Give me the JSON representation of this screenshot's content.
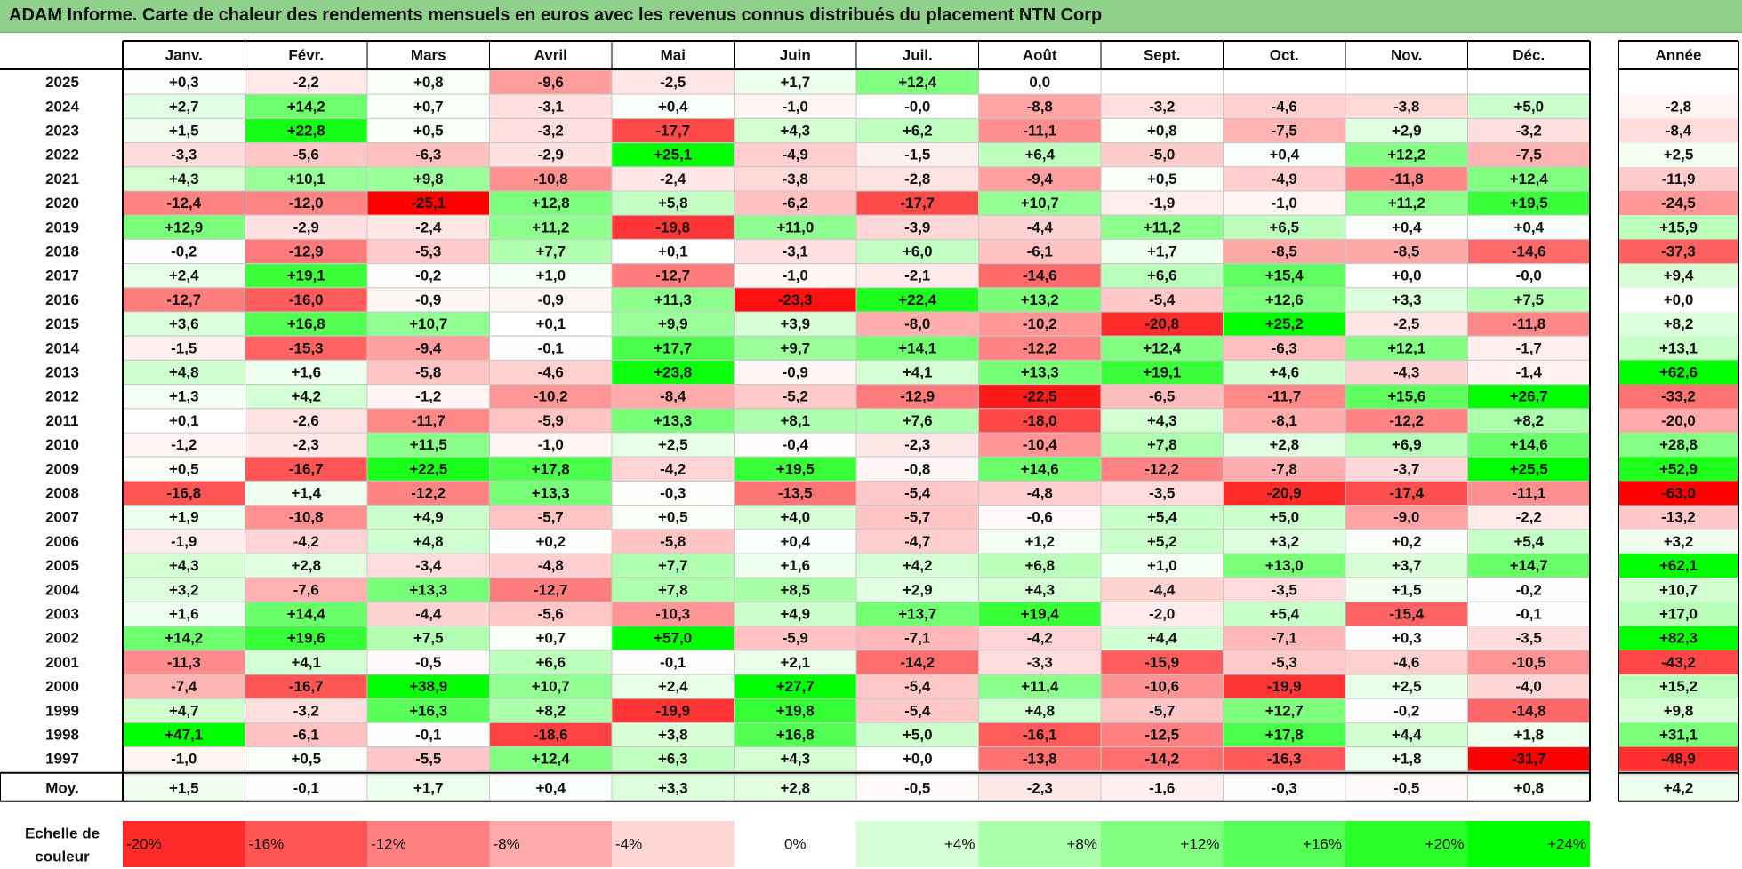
{
  "title": "ADAM Informe. Carte de chaleur des rendements mensuels en euros avec les revenus connus distribués du placement NTN Corp",
  "chart_data": {
    "type": "heatmap",
    "title": "ADAM Informe. Carte de chaleur des rendements mensuels en euros avec les revenus connus distribués du placement NTN Corp",
    "columns": [
      "Janv.",
      "Févr.",
      "Mars",
      "Avril",
      "Mai",
      "Juin",
      "Juil.",
      "Août",
      "Sept.",
      "Oct.",
      "Nov.",
      "Déc."
    ],
    "year_column_label": "Année",
    "rows": [
      {
        "label": "2025",
        "values": [
          "+0,3",
          "-2,2",
          "+0,8",
          "-9,6",
          "-2,5",
          "+1,7",
          "+12,4",
          "0,0",
          "",
          "",
          "",
          ""
        ],
        "year": ""
      },
      {
        "label": "2024",
        "values": [
          "+2,7",
          "+14,2",
          "+0,7",
          "-3,1",
          "+0,4",
          "-1,0",
          "-0,0",
          "-8,8",
          "-3,2",
          "-4,6",
          "-3,8",
          "+5,0"
        ],
        "year": "-2,8"
      },
      {
        "label": "2023",
        "values": [
          "+1,5",
          "+22,8",
          "+0,5",
          "-3,2",
          "-17,7",
          "+4,3",
          "+6,2",
          "-11,1",
          "+0,8",
          "-7,5",
          "+2,9",
          "-3,2"
        ],
        "year": "-8,4"
      },
      {
        "label": "2022",
        "values": [
          "-3,3",
          "-5,6",
          "-6,3",
          "-2,9",
          "+25,1",
          "-4,9",
          "-1,5",
          "+6,4",
          "-5,0",
          "+0,4",
          "+12,2",
          "-7,5"
        ],
        "year": "+2,5"
      },
      {
        "label": "2021",
        "values": [
          "+4,3",
          "+10,1",
          "+9,8",
          "-10,8",
          "-2,4",
          "-3,8",
          "-2,8",
          "-9,4",
          "+0,5",
          "-4,9",
          "-11,8",
          "+12,4"
        ],
        "year": "-11,9"
      },
      {
        "label": "2020",
        "values": [
          "-12,4",
          "-12,0",
          "-25,1",
          "+12,8",
          "+5,8",
          "-6,2",
          "-17,7",
          "+10,7",
          "-1,9",
          "-1,0",
          "+11,2",
          "+19,5"
        ],
        "year": "-24,5"
      },
      {
        "label": "2019",
        "values": [
          "+12,9",
          "-2,9",
          "-2,4",
          "+11,2",
          "-19,8",
          "+11,0",
          "-3,9",
          "-4,4",
          "+11,2",
          "+6,5",
          "+0,4",
          "+0,4"
        ],
        "year": "+15,9"
      },
      {
        "label": "2018",
        "values": [
          "-0,2",
          "-12,9",
          "-5,3",
          "+7,7",
          "+0,1",
          "-3,1",
          "+6,0",
          "-6,1",
          "+1,7",
          "-8,5",
          "-8,5",
          "-14,6"
        ],
        "year": "-37,3"
      },
      {
        "label": "2017",
        "values": [
          "+2,4",
          "+19,1",
          "-0,2",
          "+1,0",
          "-12,7",
          "-1,0",
          "-2,1",
          "-14,6",
          "+6,6",
          "+15,4",
          "+0,0",
          "-0,0"
        ],
        "year": "+9,4"
      },
      {
        "label": "2016",
        "values": [
          "-12,7",
          "-16,0",
          "-0,9",
          "-0,9",
          "+11,3",
          "-23,3",
          "+22,4",
          "+13,2",
          "-5,4",
          "+12,6",
          "+3,3",
          "+7,5"
        ],
        "year": "+0,0"
      },
      {
        "label": "2015",
        "values": [
          "+3,6",
          "+16,8",
          "+10,7",
          "+0,1",
          "+9,9",
          "+3,9",
          "-8,0",
          "-10,2",
          "-20,8",
          "+25,2",
          "-2,5",
          "-11,8"
        ],
        "year": "+8,2"
      },
      {
        "label": "2014",
        "values": [
          "-1,5",
          "-15,3",
          "-9,4",
          "-0,1",
          "+17,7",
          "+9,7",
          "+14,1",
          "-12,2",
          "+12,4",
          "-6,3",
          "+12,1",
          "-1,7"
        ],
        "year": "+13,1"
      },
      {
        "label": "2013",
        "values": [
          "+4,8",
          "+1,6",
          "-5,8",
          "-4,6",
          "+23,8",
          "-0,9",
          "+4,1",
          "+13,3",
          "+19,1",
          "+4,6",
          "-4,3",
          "-1,4"
        ],
        "year": "+62,6"
      },
      {
        "label": "2012",
        "values": [
          "+1,3",
          "+4,2",
          "-1,2",
          "-10,2",
          "-8,4",
          "-5,2",
          "-12,9",
          "-22,5",
          "-6,5",
          "-11,7",
          "+15,6",
          "+26,7"
        ],
        "year": "-33,2"
      },
      {
        "label": "2011",
        "values": [
          "+0,1",
          "-2,6",
          "-11,7",
          "-5,9",
          "+13,3",
          "+8,1",
          "+7,6",
          "-18,0",
          "+4,3",
          "-8,1",
          "-12,2",
          "+8,2"
        ],
        "year": "-20,0"
      },
      {
        "label": "2010",
        "values": [
          "-1,2",
          "-2,3",
          "+11,5",
          "-1,0",
          "+2,5",
          "-0,4",
          "-2,3",
          "-10,4",
          "+7,8",
          "+2,8",
          "+6,9",
          "+14,6"
        ],
        "year": "+28,8"
      },
      {
        "label": "2009",
        "values": [
          "+0,5",
          "-16,7",
          "+22,5",
          "+17,8",
          "-4,2",
          "+19,5",
          "-0,8",
          "+14,6",
          "-12,2",
          "-7,8",
          "-3,7",
          "+25,5"
        ],
        "year": "+52,9"
      },
      {
        "label": "2008",
        "values": [
          "-16,8",
          "+1,4",
          "-12,2",
          "+13,3",
          "-0,3",
          "-13,5",
          "-5,4",
          "-4,8",
          "-3,5",
          "-20,9",
          "-17,4",
          "-11,1"
        ],
        "year": "-63,0"
      },
      {
        "label": "2007",
        "values": [
          "+1,9",
          "-10,8",
          "+4,9",
          "-5,7",
          "+0,5",
          "+4,0",
          "-5,7",
          "-0,6",
          "+5,4",
          "+5,0",
          "-9,0",
          "-2,2"
        ],
        "year": "-13,2"
      },
      {
        "label": "2006",
        "values": [
          "-1,9",
          "-4,2",
          "+4,8",
          "+0,2",
          "-5,8",
          "+0,4",
          "-4,7",
          "+1,2",
          "+5,2",
          "+3,2",
          "+0,2",
          "+5,4"
        ],
        "year": "+3,2"
      },
      {
        "label": "2005",
        "values": [
          "+4,3",
          "+2,8",
          "-3,4",
          "-4,8",
          "+7,7",
          "+1,6",
          "+4,2",
          "+6,8",
          "+1,0",
          "+13,0",
          "+3,7",
          "+14,7"
        ],
        "year": "+62,1"
      },
      {
        "label": "2004",
        "values": [
          "+3,2",
          "-7,6",
          "+13,3",
          "-12,7",
          "+7,8",
          "+8,5",
          "+2,9",
          "+4,3",
          "-4,4",
          "-3,5",
          "+1,5",
          "-0,2"
        ],
        "year": "+10,7"
      },
      {
        "label": "2003",
        "values": [
          "+1,6",
          "+14,4",
          "-4,4",
          "-5,6",
          "-10,3",
          "+4,9",
          "+13,7",
          "+19,4",
          "-2,0",
          "+5,4",
          "-15,4",
          "-0,1"
        ],
        "year": "+17,0"
      },
      {
        "label": "2002",
        "values": [
          "+14,2",
          "+19,6",
          "+7,5",
          "+0,7",
          "+57,0",
          "-5,9",
          "-7,1",
          "-4,2",
          "+4,4",
          "-7,1",
          "+0,3",
          "-3,5"
        ],
        "year": "+82,3"
      },
      {
        "label": "2001",
        "values": [
          "-11,3",
          "+4,1",
          "-0,5",
          "+6,6",
          "-0,1",
          "+2,1",
          "-14,2",
          "-3,3",
          "-15,9",
          "-5,3",
          "-4,6",
          "-10,5"
        ],
        "year": "-43,2"
      },
      {
        "label": "2000",
        "values": [
          "-7,4",
          "-16,7",
          "+38,9",
          "+10,7",
          "+2,4",
          "+27,7",
          "-5,4",
          "+11,4",
          "-10,6",
          "-19,9",
          "+2,5",
          "-4,0"
        ],
        "year": "+15,2"
      },
      {
        "label": "1999",
        "values": [
          "+4,7",
          "-3,2",
          "+16,3",
          "+8,2",
          "-19,9",
          "+19,8",
          "-5,4",
          "+4,8",
          "-5,7",
          "+12,7",
          "-0,2",
          "-14,8"
        ],
        "year": "+9,8"
      },
      {
        "label": "1998",
        "values": [
          "+47,1",
          "-6,1",
          "-0,1",
          "-18,6",
          "+3,8",
          "+16,8",
          "+5,0",
          "-16,1",
          "-12,5",
          "+17,8",
          "+4,4",
          "+1,8"
        ],
        "year": "+31,1"
      },
      {
        "label": "1997",
        "values": [
          "-1,0",
          "+0,5",
          "-5,5",
          "+12,4",
          "+6,3",
          "+4,3",
          "+0,0",
          "-13,8",
          "-14,2",
          "-16,3",
          "+1,8",
          "-31,7"
        ],
        "year": "-48,9"
      }
    ],
    "average_row": {
      "label": "Moy.",
      "values": [
        "+1,5",
        "-0,1",
        "+1,7",
        "+0,4",
        "+3,3",
        "+2,8",
        "-0,5",
        "-2,3",
        "-1,6",
        "-0,3",
        "-0,5",
        "+0,8"
      ],
      "year": "+4,2"
    },
    "scale": {
      "label_line1": "Echelle de",
      "label_line2": "couleur",
      "items": [
        {
          "label": "-20%",
          "value": -20
        },
        {
          "label": "-16%",
          "value": -16
        },
        {
          "label": "-12%",
          "value": -12
        },
        {
          "label": "-8%",
          "value": -8
        },
        {
          "label": "-4%",
          "value": -4
        },
        {
          "label": "0%",
          "value": 0
        },
        {
          "label": "+4%",
          "value": 4
        },
        {
          "label": "+8%",
          "value": 8
        },
        {
          "label": "+12%",
          "value": 12
        },
        {
          "label": "+16%",
          "value": 16
        },
        {
          "label": "+20%",
          "value": 20
        },
        {
          "label": "+24%",
          "value": 24
        }
      ]
    },
    "colors": {
      "negative_max": "#ff0000",
      "neutral": "#ffffff",
      "positive_max": "#00ff00",
      "title_bar": "#8fd18a",
      "grid": "#c8c8c8"
    }
  }
}
